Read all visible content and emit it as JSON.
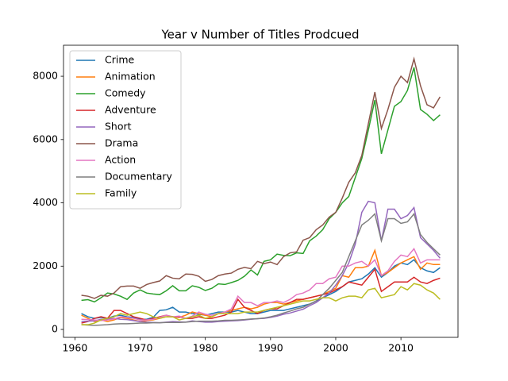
{
  "chart_data": {
    "type": "line",
    "title": "Year v Number of Titles Prodcued",
    "x": [
      1961,
      1962,
      1963,
      1964,
      1965,
      1966,
      1967,
      1968,
      1969,
      1970,
      1971,
      1972,
      1973,
      1974,
      1975,
      1976,
      1977,
      1978,
      1979,
      1980,
      1981,
      1982,
      1983,
      1984,
      1985,
      1986,
      1987,
      1988,
      1989,
      1990,
      1991,
      1992,
      1993,
      1994,
      1995,
      1996,
      1997,
      1998,
      1999,
      2000,
      2001,
      2002,
      2003,
      2004,
      2005,
      2006,
      2007,
      2008,
      2009,
      2010,
      2011,
      2012,
      2013,
      2014,
      2015,
      2016
    ],
    "xlim": [
      1958.25,
      2018.75
    ],
    "xticks": [
      1960,
      1970,
      1980,
      1990,
      2000,
      2010
    ],
    "ylim": [
      -250,
      8980
    ],
    "yticks": [
      0,
      2000,
      4000,
      6000,
      8000
    ],
    "legend": "upper left",
    "series": [
      {
        "name": "Crime",
        "color": "#1f77b4",
        "values": [
          500,
          400,
          350,
          380,
          350,
          420,
          450,
          400,
          380,
          320,
          320,
          380,
          600,
          620,
          700,
          550,
          550,
          500,
          480,
          450,
          500,
          550,
          550,
          550,
          600,
          550,
          500,
          500,
          550,
          600,
          600,
          600,
          650,
          700,
          750,
          800,
          900,
          1000,
          1100,
          1200,
          1350,
          1500,
          1550,
          1600,
          1750,
          1950,
          1650,
          1800,
          2000,
          2100,
          2050,
          2200,
          1950,
          1850,
          1800,
          1950
        ]
      },
      {
        "name": "Animation",
        "color": "#ff7f0e",
        "values": [
          450,
          350,
          250,
          300,
          250,
          300,
          380,
          350,
          300,
          250,
          280,
          300,
          350,
          400,
          400,
          380,
          450,
          550,
          500,
          450,
          400,
          500,
          550,
          600,
          650,
          700,
          650,
          700,
          800,
          850,
          850,
          800,
          850,
          900,
          950,
          1000,
          1050,
          1100,
          1200,
          1300,
          1700,
          1650,
          1950,
          1950,
          2000,
          2500,
          1700,
          1800,
          1950,
          2100,
          2200,
          2300,
          1900,
          2100,
          2050,
          2050
        ]
      },
      {
        "name": "Comedy",
        "color": "#2ca02c",
        "values": [
          920,
          940,
          870,
          1000,
          1150,
          1120,
          1050,
          950,
          1150,
          1250,
          1150,
          1120,
          1100,
          1220,
          1380,
          1220,
          1220,
          1380,
          1330,
          1230,
          1300,
          1440,
          1420,
          1480,
          1550,
          1680,
          1880,
          1720,
          2150,
          2200,
          2380,
          2340,
          2330,
          2420,
          2400,
          2800,
          2950,
          3150,
          3500,
          3700,
          4000,
          4200,
          4800,
          5400,
          6300,
          7250,
          5550,
          6300,
          7050,
          7200,
          7550,
          8280,
          6950,
          6800,
          6600,
          6780
        ]
      },
      {
        "name": "Adventure",
        "color": "#d62728",
        "values": [
          200,
          250,
          350,
          400,
          350,
          600,
          600,
          500,
          400,
          350,
          300,
          350,
          400,
          450,
          400,
          400,
          350,
          350,
          400,
          350,
          350,
          400,
          450,
          550,
          950,
          700,
          600,
          500,
          600,
          650,
          650,
          750,
          850,
          950,
          950,
          1000,
          1050,
          1100,
          1150,
          1250,
          1350,
          1500,
          1450,
          1400,
          1650,
          1900,
          1200,
          1350,
          1500,
          1500,
          1500,
          1650,
          1500,
          1450,
          1550,
          1620
        ]
      },
      {
        "name": "Short",
        "color": "#9467bd",
        "values": [
          250,
          260,
          270,
          320,
          330,
          350,
          320,
          310,
          280,
          250,
          230,
          220,
          210,
          230,
          250,
          240,
          230,
          270,
          250,
          230,
          230,
          250,
          260,
          270,
          280,
          300,
          320,
          340,
          350,
          380,
          420,
          480,
          520,
          580,
          640,
          750,
          850,
          1000,
          1150,
          1400,
          1700,
          2100,
          2700,
          3700,
          4050,
          4000,
          2800,
          3800,
          3800,
          3500,
          3600,
          3850,
          2900,
          2700,
          2500,
          2250
        ]
      },
      {
        "name": "Drama",
        "color": "#8c564b",
        "values": [
          1080,
          1050,
          980,
          1080,
          1050,
          1150,
          1350,
          1370,
          1370,
          1300,
          1420,
          1480,
          1530,
          1700,
          1620,
          1600,
          1750,
          1740,
          1680,
          1520,
          1580,
          1700,
          1750,
          1780,
          1900,
          1960,
          1920,
          2150,
          2080,
          2130,
          2050,
          2300,
          2420,
          2450,
          2820,
          2900,
          3150,
          3300,
          3550,
          3700,
          4150,
          4650,
          4950,
          5500,
          6500,
          7500,
          6350,
          6950,
          7650,
          8000,
          7800,
          8550,
          7700,
          7100,
          7000,
          7350
        ]
      },
      {
        "name": "Action",
        "color": "#e377c2",
        "values": [
          320,
          310,
          300,
          280,
          300,
          330,
          400,
          380,
          350,
          300,
          300,
          320,
          380,
          450,
          400,
          420,
          350,
          420,
          550,
          480,
          450,
          500,
          550,
          650,
          1050,
          850,
          850,
          750,
          850,
          850,
          900,
          850,
          950,
          1100,
          1150,
          1250,
          1450,
          1450,
          1600,
          1650,
          2000,
          2000,
          2100,
          2150,
          2000,
          2200,
          1700,
          1850,
          2150,
          2350,
          2300,
          2550,
          2100,
          2200,
          2200,
          2200
        ]
      },
      {
        "name": "Documentary",
        "color": "#7f7f7f",
        "values": [
          150,
          140,
          130,
          140,
          150,
          170,
          180,
          180,
          190,
          200,
          200,
          210,
          210,
          220,
          220,
          220,
          230,
          250,
          260,
          260,
          260,
          270,
          290,
          290,
          300,
          310,
          330,
          340,
          360,
          400,
          450,
          520,
          580,
          650,
          700,
          800,
          900,
          1100,
          1300,
          1550,
          1800,
          2300,
          2800,
          3300,
          3450,
          3650,
          2800,
          3500,
          3500,
          3350,
          3400,
          3650,
          3000,
          2750,
          2550,
          2350
        ]
      },
      {
        "name": "Family",
        "color": "#bcbd22",
        "values": [
          150,
          150,
          200,
          300,
          350,
          400,
          500,
          450,
          500,
          550,
          500,
          400,
          350,
          400,
          400,
          300,
          350,
          400,
          450,
          350,
          400,
          500,
          500,
          500,
          500,
          550,
          550,
          550,
          600,
          650,
          700,
          750,
          800,
          850,
          900,
          900,
          950,
          1000,
          1000,
          900,
          1000,
          1050,
          1050,
          1000,
          1250,
          1300,
          1000,
          1050,
          1100,
          1350,
          1250,
          1450,
          1400,
          1250,
          1150,
          950
        ]
      }
    ]
  }
}
